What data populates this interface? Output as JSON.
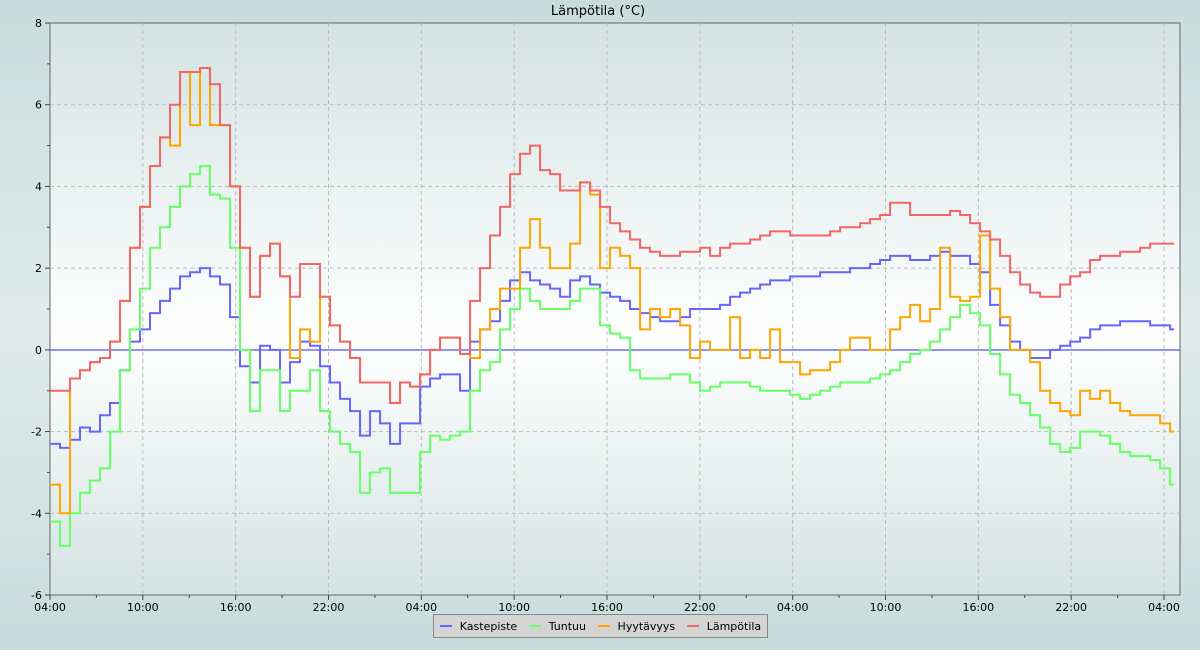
{
  "chart_data": {
    "type": "line",
    "title": "Lämpötila (°C)",
    "xlabel": "",
    "ylabel": "",
    "ylim": [
      -6,
      8
    ],
    "yticks": [
      "-6",
      "-4",
      "-2",
      "0",
      "2",
      "4",
      "6",
      "8"
    ],
    "xlim_hours": [
      0,
      73.1
    ],
    "xticks": [
      {
        "hours": 0,
        "label": "04:00"
      },
      {
        "hours": 6,
        "label": "10:00"
      },
      {
        "hours": 12,
        "label": "16:00"
      },
      {
        "hours": 18,
        "label": "22:00"
      },
      {
        "hours": 24,
        "label": "04:00"
      },
      {
        "hours": 30,
        "label": "10:00"
      },
      {
        "hours": 36,
        "label": "16:00"
      },
      {
        "hours": 42,
        "label": "22:00"
      },
      {
        "hours": 48,
        "label": "04:00"
      },
      {
        "hours": 54,
        "label": "10:00"
      },
      {
        "hours": 60,
        "label": "16:00"
      },
      {
        "hours": 66,
        "label": "22:00"
      },
      {
        "hours": 72,
        "label": "04:00"
      }
    ],
    "grid": true,
    "legend_position": "bottom-center",
    "x_start_hours": 0,
    "x_step_hours": 0.6464,
    "series": [
      {
        "name": "Kastepiste",
        "color": "#6666ff",
        "values": [
          -2.3,
          -2.4,
          -2.2,
          -1.9,
          -2.0,
          -1.6,
          -1.3,
          -0.5,
          0.2,
          0.5,
          0.9,
          1.2,
          1.5,
          1.8,
          1.9,
          2.0,
          1.8,
          1.6,
          0.8,
          -0.4,
          -0.8,
          0.1,
          0.0,
          -0.8,
          -0.3,
          0.2,
          0.1,
          -0.4,
          -0.8,
          -1.2,
          -1.5,
          -2.1,
          -1.5,
          -1.8,
          -2.3,
          -1.8,
          -1.8,
          -0.9,
          -0.7,
          -0.6,
          -0.6,
          -1.0,
          0.2,
          0.5,
          0.7,
          1.2,
          1.7,
          1.9,
          1.7,
          1.6,
          1.5,
          1.3,
          1.7,
          1.8,
          1.6,
          1.4,
          1.3,
          1.2,
          1.0,
          0.9,
          0.8,
          0.7,
          0.7,
          0.8,
          1.0,
          1.0,
          1.0,
          1.1,
          1.3,
          1.4,
          1.5,
          1.6,
          1.7,
          1.7,
          1.8,
          1.8,
          1.8,
          1.9,
          1.9,
          1.9,
          2.0,
          2.0,
          2.1,
          2.2,
          2.3,
          2.3,
          2.2,
          2.2,
          2.3,
          2.4,
          2.3,
          2.3,
          2.1,
          1.9,
          1.1,
          0.6,
          0.2,
          0.0,
          -0.2,
          -0.2,
          0.0,
          0.1,
          0.2,
          0.3,
          0.5,
          0.6,
          0.6,
          0.7,
          0.7,
          0.7,
          0.6,
          0.6,
          0.5
        ]
      },
      {
        "name": "Tuntuu",
        "color": "#66ff66",
        "values": [
          -4.2,
          -4.8,
          -4.0,
          -3.5,
          -3.2,
          -2.9,
          -2.0,
          -0.5,
          0.5,
          1.5,
          2.5,
          3.0,
          3.5,
          4.0,
          4.3,
          4.5,
          3.8,
          3.7,
          2.5,
          0.0,
          -1.5,
          -0.5,
          -0.5,
          -1.5,
          -1.0,
          -1.0,
          -0.5,
          -1.5,
          -2.0,
          -2.3,
          -2.5,
          -3.5,
          -3.0,
          -2.9,
          -3.5,
          -3.5,
          -3.5,
          -2.5,
          -2.1,
          -2.2,
          -2.1,
          -2.0,
          -1.0,
          -0.5,
          -0.3,
          0.5,
          1.0,
          1.5,
          1.2,
          1.0,
          1.0,
          1.0,
          1.2,
          1.5,
          1.5,
          0.6,
          0.4,
          0.3,
          -0.5,
          -0.7,
          -0.7,
          -0.7,
          -0.6,
          -0.6,
          -0.8,
          -1.0,
          -0.9,
          -0.8,
          -0.8,
          -0.8,
          -0.9,
          -1.0,
          -1.0,
          -1.0,
          -1.1,
          -1.2,
          -1.1,
          -1.0,
          -0.9,
          -0.8,
          -0.8,
          -0.8,
          -0.7,
          -0.6,
          -0.5,
          -0.3,
          -0.1,
          0.0,
          0.2,
          0.5,
          0.8,
          1.1,
          0.9,
          0.6,
          -0.1,
          -0.6,
          -1.1,
          -1.3,
          -1.6,
          -1.9,
          -2.3,
          -2.5,
          -2.4,
          -2.0,
          -2.0,
          -2.1,
          -2.3,
          -2.5,
          -2.6,
          -2.6,
          -2.7,
          -2.9,
          -3.3
        ]
      },
      {
        "name": "Hyytävyys",
        "color": "#ffa500",
        "values": [
          -3.3,
          -4.0,
          -0.7,
          -0.5,
          -0.3,
          -0.2,
          0.2,
          1.2,
          2.5,
          3.5,
          4.5,
          5.2,
          5.0,
          6.8,
          5.5,
          6.9,
          5.5,
          5.5,
          4.0,
          2.5,
          1.3,
          2.3,
          2.6,
          1.8,
          -0.2,
          0.5,
          0.2,
          1.3,
          0.6,
          0.2,
          -0.2,
          -0.8,
          -0.8,
          -0.8,
          -1.3,
          -0.8,
          -0.9,
          -0.6,
          0,
          0.3,
          0.3,
          -0.1,
          -0.2,
          0.5,
          1.0,
          1.5,
          1.5,
          2.5,
          3.2,
          2.5,
          2.0,
          2.0,
          2.6,
          4.1,
          3.8,
          2.0,
          2.5,
          2.3,
          2.0,
          0.5,
          1.0,
          0.8,
          1.0,
          0.6,
          -0.2,
          0.2,
          0.0,
          0.0,
          0.8,
          -0.2,
          0.0,
          -0.2,
          0.5,
          -0.3,
          -0.3,
          -0.6,
          -0.5,
          -0.5,
          -0.3,
          0.0,
          0.3,
          0.3,
          0.0,
          0.0,
          0.5,
          0.8,
          1.1,
          0.7,
          1.0,
          2.5,
          1.3,
          1.2,
          1.3,
          2.8,
          1.5,
          0.8,
          0.0,
          0.0,
          -0.3,
          -1.0,
          -1.3,
          -1.5,
          -1.6,
          -1.0,
          -1.2,
          -1.0,
          -1.3,
          -1.5,
          -1.6,
          -1.6,
          -1.6,
          -1.8,
          -2.0
        ]
      },
      {
        "name": "Lämpötila",
        "color": "#f26666",
        "values": [
          -1,
          -1,
          -0.7,
          -0.5,
          -0.3,
          -0.2,
          0.2,
          1.2,
          2.5,
          3.5,
          4.5,
          5.2,
          6.0,
          6.8,
          6.8,
          6.9,
          6.5,
          5.5,
          4.0,
          2.5,
          1.3,
          2.3,
          2.6,
          1.8,
          1.3,
          2.1,
          2.1,
          1.3,
          0.6,
          0.2,
          -0.2,
          -0.8,
          -0.8,
          -0.8,
          -1.3,
          -0.8,
          -0.9,
          -0.6,
          0,
          0.3,
          0.3,
          -0.1,
          1.2,
          2.0,
          2.8,
          3.5,
          4.3,
          4.8,
          5.0,
          4.4,
          4.3,
          3.9,
          3.9,
          4.1,
          3.9,
          3.5,
          3.1,
          2.9,
          2.7,
          2.5,
          2.4,
          2.3,
          2.3,
          2.4,
          2.4,
          2.5,
          2.3,
          2.5,
          2.6,
          2.6,
          2.7,
          2.8,
          2.9,
          2.9,
          2.8,
          2.8,
          2.8,
          2.8,
          2.9,
          3.0,
          3.0,
          3.1,
          3.2,
          3.3,
          3.6,
          3.6,
          3.3,
          3.3,
          3.3,
          3.3,
          3.4,
          3.3,
          3.1,
          2.9,
          2.7,
          2.3,
          1.9,
          1.6,
          1.4,
          1.3,
          1.3,
          1.6,
          1.8,
          1.9,
          2.2,
          2.3,
          2.3,
          2.4,
          2.4,
          2.5,
          2.6,
          2.6,
          2.6
        ]
      }
    ]
  }
}
